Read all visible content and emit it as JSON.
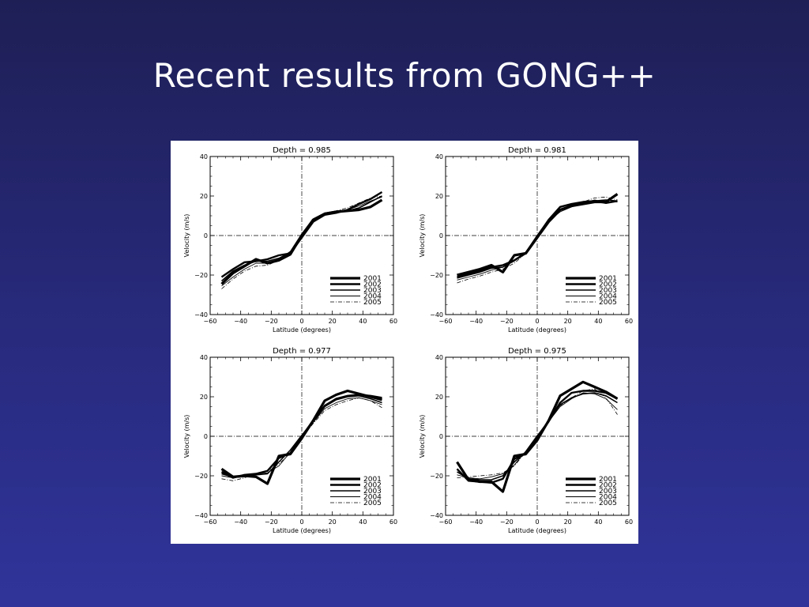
{
  "slide": {
    "title": "Recent results from GONG++",
    "background_top": "#1e1f55",
    "background_bottom": "#30349a",
    "title_color": "#ffffff"
  },
  "chart_data": [
    {
      "type": "line",
      "title": "Depth = 0.985",
      "xlabel": "Latitude (degrees)",
      "ylabel": "Velocity (m/s)",
      "xlim": [
        -60,
        60
      ],
      "ylim": [
        -40,
        40
      ],
      "xticks": [
        -60,
        -40,
        -20,
        0,
        20,
        40,
        60
      ],
      "yticks": [
        -40,
        -20,
        0,
        20,
        40
      ],
      "x": [
        -52.5,
        -45,
        -37.5,
        -30,
        -22.5,
        -15,
        -7.5,
        0,
        7.5,
        15,
        22.5,
        30,
        37.5,
        45,
        52.5
      ],
      "series": [
        {
          "name": "2001",
          "values": [
            -24.5,
            -19,
            -15.5,
            -12,
            -14,
            -12.5,
            -9.5,
            0,
            8,
            11,
            12,
            12.5,
            13,
            14.5,
            18
          ]
        },
        {
          "name": "2002",
          "values": [
            -21,
            -17,
            -13.5,
            -13,
            -12,
            -10,
            -9,
            -1,
            7,
            10.5,
            11.5,
            13,
            16,
            18.5,
            22
          ]
        },
        {
          "name": "2003",
          "values": [
            -23,
            -18,
            -15,
            -13,
            -13,
            -11.5,
            -8.5,
            0,
            7.5,
            11,
            12,
            12.5,
            14,
            17,
            20
          ]
        },
        {
          "name": "2004",
          "values": [
            -25.5,
            -21,
            -17,
            -14,
            -14,
            -12,
            -8,
            1,
            8.5,
            11.5,
            12.5,
            13,
            15,
            17.5,
            19.5
          ]
        },
        {
          "name": "2005",
          "values": [
            -27,
            -22,
            -18,
            -15.5,
            -15,
            -12.5,
            -8.5,
            0.5,
            8,
            11,
            12.5,
            14,
            16.5,
            19,
            20
          ]
        }
      ],
      "legend": "lower-right"
    },
    {
      "type": "line",
      "title": "Depth = 0.981",
      "xlabel": "Latitude (degrees)",
      "ylabel": "Velocity (m/s)",
      "xlim": [
        -60,
        60
      ],
      "ylim": [
        -40,
        40
      ],
      "xticks": [
        -60,
        -40,
        -20,
        0,
        20,
        40,
        60
      ],
      "yticks": [
        -40,
        -20,
        0,
        20,
        40
      ],
      "x": [
        -52.5,
        -45,
        -37.5,
        -30,
        -22.5,
        -15,
        -7.5,
        0,
        7.5,
        15,
        22.5,
        30,
        37.5,
        45,
        52.5
      ],
      "series": [
        {
          "name": "2001",
          "values": [
            -20,
            -18.5,
            -17,
            -15,
            -18.5,
            -10,
            -9,
            -1,
            7,
            13,
            15,
            16,
            17,
            17,
            21
          ]
        },
        {
          "name": "2002",
          "values": [
            -21,
            -19.5,
            -18,
            -16,
            -15,
            -12.5,
            -9,
            -0.5,
            8,
            14.5,
            16,
            17,
            17.5,
            16.5,
            17.5
          ]
        },
        {
          "name": "2003",
          "values": [
            -21.5,
            -20,
            -18.5,
            -16.5,
            -16,
            -12.5,
            -8.5,
            0,
            8,
            13,
            15.5,
            17,
            17.5,
            18,
            17.5
          ]
        },
        {
          "name": "2004",
          "values": [
            -22.5,
            -21,
            -19.5,
            -17.5,
            -16,
            -13,
            -8.5,
            0,
            7.5,
            12,
            14.5,
            16.5,
            18,
            17,
            17
          ]
        },
        {
          "name": "2005",
          "values": [
            -24,
            -22,
            -20.5,
            -18.5,
            -17,
            -14,
            -9,
            0,
            7.5,
            12,
            15,
            17,
            19,
            19.5,
            18
          ]
        }
      ],
      "legend": "lower-right"
    },
    {
      "type": "line",
      "title": "Depth = 0.977",
      "xlabel": "Latitude (degrees)",
      "ylabel": "Velocity (m/s)",
      "xlim": [
        -60,
        60
      ],
      "ylim": [
        -40,
        40
      ],
      "xticks": [
        -60,
        -40,
        -20,
        0,
        20,
        40,
        60
      ],
      "yticks": [
        -40,
        -20,
        0,
        20,
        40
      ],
      "x": [
        -52.5,
        -45,
        -37.5,
        -30,
        -22.5,
        -15,
        -7.5,
        0,
        7.5,
        15,
        22.5,
        30,
        37.5,
        45,
        52.5
      ],
      "series": [
        {
          "name": "2001",
          "values": [
            -16.5,
            -20.5,
            -20,
            -20.5,
            -24,
            -10,
            -9,
            -1,
            8,
            18,
            21,
            23,
            21.5,
            20,
            18.5
          ]
        },
        {
          "name": "2002",
          "values": [
            -18,
            -21,
            -19.5,
            -19,
            -17.5,
            -11,
            -8.5,
            0,
            8,
            15.5,
            19,
            20.5,
            21,
            20.5,
            19.5
          ]
        },
        {
          "name": "2003",
          "values": [
            -19,
            -20.5,
            -20,
            -19.5,
            -19,
            -13,
            -7,
            0.5,
            7.5,
            15,
            18.5,
            20,
            20.5,
            19,
            17
          ]
        },
        {
          "name": "2004",
          "values": [
            -20,
            -21,
            -20.5,
            -19,
            -18.5,
            -15,
            -8,
            0,
            7,
            14,
            17,
            19,
            19.5,
            18,
            16
          ]
        },
        {
          "name": "2005",
          "values": [
            -21.5,
            -22.5,
            -21,
            -19,
            -17.5,
            -14,
            -8.5,
            -0.5,
            6.5,
            13,
            16,
            18,
            19.5,
            18,
            14.5
          ]
        }
      ],
      "legend": "lower-right"
    },
    {
      "type": "line",
      "title": "Depth = 0.975",
      "xlabel": "Latitude (degrees)",
      "ylabel": "Velocity (m/s)",
      "xlim": [
        -60,
        60
      ],
      "ylim": [
        -40,
        40
      ],
      "xticks": [
        -60,
        -40,
        -20,
        0,
        20,
        40,
        60
      ],
      "yticks": [
        -40,
        -20,
        0,
        20,
        40
      ],
      "x": [
        -52.5,
        -45,
        -37.5,
        -30,
        -22.5,
        -15,
        -7.5,
        0,
        7.5,
        15,
        22.5,
        30,
        37.5,
        45,
        52.5
      ],
      "series": [
        {
          "name": "2001",
          "values": [
            -13,
            -22,
            -23,
            -23,
            -28,
            -10,
            -9,
            -2,
            8,
            20.5,
            24,
            27.5,
            25,
            22.5,
            19
          ]
        },
        {
          "name": "2002",
          "values": [
            -16.5,
            -22.5,
            -23,
            -23.5,
            -21.5,
            -11.5,
            -8.5,
            -1,
            7.5,
            17,
            22,
            23,
            23,
            22,
            19
          ]
        },
        {
          "name": "2003",
          "values": [
            -18,
            -21.5,
            -22,
            -22,
            -20,
            -13,
            -8,
            0,
            8,
            16,
            19.5,
            21.5,
            22,
            20.5,
            17
          ]
        },
        {
          "name": "2004",
          "values": [
            -19.5,
            -21,
            -21.5,
            -20.5,
            -19,
            -14.5,
            -7.5,
            0.5,
            7.5,
            15,
            19,
            22,
            21.5,
            19,
            13.5
          ]
        },
        {
          "name": "2005",
          "values": [
            -21,
            -20.5,
            -20,
            -19.5,
            -18.5,
            -15,
            -8,
            0,
            7.5,
            15.5,
            19.5,
            23,
            24,
            19.5,
            11
          ]
        }
      ],
      "legend": "lower-right"
    }
  ]
}
